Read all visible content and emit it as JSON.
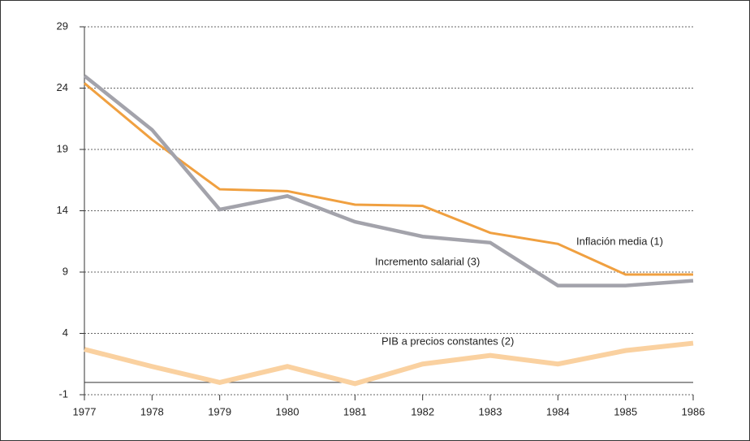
{
  "chart_data": {
    "type": "line",
    "x": [
      1977,
      1978,
      1979,
      1980,
      1981,
      1982,
      1983,
      1984,
      1985,
      1986
    ],
    "series": [
      {
        "name": "Inflación media (1)",
        "color": "#f0a040",
        "values": [
          24.4,
          19.8,
          15.75,
          15.6,
          14.5,
          14.4,
          12.2,
          11.3,
          8.8,
          8.8
        ]
      },
      {
        "name": "Incremento salarial (3)",
        "color": "#a3a3ab",
        "values": [
          25.0,
          20.6,
          14.1,
          15.2,
          13.1,
          11.9,
          11.4,
          7.9,
          7.9,
          8.3
        ]
      },
      {
        "name": "PIB a precios constantes (2)",
        "color": "#fad1a0",
        "values": [
          2.7,
          1.3,
          0.0,
          1.3,
          -0.1,
          1.5,
          2.2,
          1.5,
          2.6,
          3.2
        ]
      }
    ],
    "xlim": [
      1977,
      1986
    ],
    "xticks": [
      1977,
      1978,
      1979,
      1980,
      1981,
      1982,
      1983,
      1984,
      1985,
      1986
    ],
    "ylim": [
      -1,
      29
    ],
    "yticks": [
      -1,
      4,
      9,
      14,
      19,
      24,
      29
    ],
    "grid": true
  }
}
